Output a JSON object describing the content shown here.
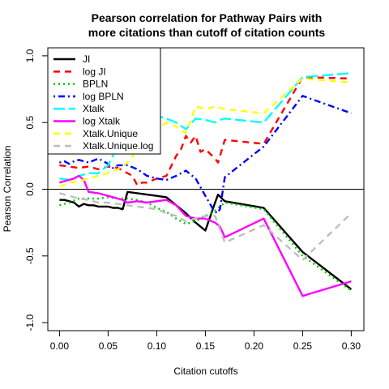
{
  "chart_data": {
    "type": "line",
    "title_lines": [
      "Pearson correlation for Pathway Pairs with",
      "more citations than cutoff of citation counts"
    ],
    "xlabel": "Citation cutoffs",
    "ylabel": "Pearson Correlation",
    "xlim": [
      -0.012,
      0.313
    ],
    "ylim": [
      -1.06,
      1.06
    ],
    "xticks": [
      0.0,
      0.05,
      0.1,
      0.15,
      0.2,
      0.25,
      0.3
    ],
    "xtick_labels": [
      "0.00",
      "0.05",
      "0.10",
      "0.15",
      "0.20",
      "0.25",
      "0.30"
    ],
    "yticks": [
      -1.0,
      -0.5,
      0.0,
      0.5,
      1.0
    ],
    "ytick_labels": [
      "-1.0",
      "-0.5",
      "0.0",
      "0.5",
      "1.0"
    ],
    "reference_line_y": 0,
    "legend_position": "top-left",
    "series": [
      {
        "name": "JI",
        "color": "#000000",
        "dash": "solid",
        "width": 2.4,
        "points": [
          [
            0.0,
            -0.08
          ],
          [
            0.005,
            -0.08
          ],
          [
            0.01,
            -0.09
          ],
          [
            0.015,
            -0.1
          ],
          [
            0.02,
            -0.13
          ],
          [
            0.025,
            -0.11
          ],
          [
            0.03,
            -0.12
          ],
          [
            0.035,
            -0.12
          ],
          [
            0.04,
            -0.13
          ],
          [
            0.05,
            -0.13
          ],
          [
            0.055,
            -0.14
          ],
          [
            0.06,
            -0.14
          ],
          [
            0.065,
            -0.15
          ],
          [
            0.07,
            -0.02
          ],
          [
            0.08,
            -0.03
          ],
          [
            0.09,
            -0.04
          ],
          [
            0.1,
            -0.05
          ],
          [
            0.11,
            -0.06
          ],
          [
            0.12,
            -0.12
          ],
          [
            0.13,
            -0.18
          ],
          [
            0.14,
            -0.25
          ],
          [
            0.15,
            -0.31
          ],
          [
            0.16,
            -0.1
          ],
          [
            0.163,
            -0.04
          ],
          [
            0.17,
            -0.09
          ],
          [
            0.21,
            -0.14
          ],
          [
            0.25,
            -0.47
          ],
          [
            0.3,
            -0.75
          ]
        ]
      },
      {
        "name": "log JI",
        "color": "#ff0000",
        "dash": "dashed",
        "width": 2.4,
        "points": [
          [
            0.0,
            0.18
          ],
          [
            0.01,
            0.17
          ],
          [
            0.02,
            0.16
          ],
          [
            0.03,
            0.17
          ],
          [
            0.04,
            0.15
          ],
          [
            0.05,
            0.17
          ],
          [
            0.06,
            0.16
          ],
          [
            0.065,
            0.14
          ],
          [
            0.07,
            0.12
          ],
          [
            0.075,
            0.1
          ],
          [
            0.08,
            0.03
          ],
          [
            0.085,
            0.05
          ],
          [
            0.09,
            0.05
          ],
          [
            0.1,
            0.08
          ],
          [
            0.11,
            0.1
          ],
          [
            0.12,
            0.25
          ],
          [
            0.125,
            0.3
          ],
          [
            0.13,
            0.4
          ],
          [
            0.135,
            0.35
          ],
          [
            0.14,
            0.4
          ],
          [
            0.145,
            0.28
          ],
          [
            0.15,
            0.3
          ],
          [
            0.16,
            0.23
          ],
          [
            0.163,
            0.2
          ],
          [
            0.17,
            0.37
          ],
          [
            0.21,
            0.34
          ],
          [
            0.25,
            0.84
          ],
          [
            0.3,
            0.83
          ]
        ]
      },
      {
        "name": "BPLN",
        "color": "#00cd00",
        "dash": "dotted",
        "width": 2.4,
        "points": [
          [
            0.0,
            -0.12
          ],
          [
            0.01,
            -0.1
          ],
          [
            0.02,
            -0.07
          ],
          [
            0.03,
            -0.07
          ],
          [
            0.04,
            -0.07
          ],
          [
            0.05,
            -0.06
          ],
          [
            0.06,
            -0.07
          ],
          [
            0.07,
            -0.07
          ],
          [
            0.08,
            -0.08
          ],
          [
            0.09,
            -0.1
          ],
          [
            0.1,
            -0.14
          ],
          [
            0.11,
            -0.17
          ],
          [
            0.12,
            -0.22
          ],
          [
            0.13,
            -0.26
          ],
          [
            0.14,
            -0.24
          ],
          [
            0.15,
            -0.2
          ],
          [
            0.16,
            -0.16
          ],
          [
            0.17,
            -0.1
          ],
          [
            0.21,
            -0.15
          ],
          [
            0.25,
            -0.5
          ],
          [
            0.3,
            -0.76
          ]
        ]
      },
      {
        "name": "log BPLN",
        "color": "#0000ff",
        "dash": "dotdash",
        "width": 2.4,
        "points": [
          [
            0.0,
            0.2
          ],
          [
            0.005,
            0.21
          ],
          [
            0.01,
            0.19
          ],
          [
            0.015,
            0.21
          ],
          [
            0.02,
            0.22
          ],
          [
            0.03,
            0.2
          ],
          [
            0.04,
            0.23
          ],
          [
            0.05,
            0.19
          ],
          [
            0.055,
            0.16
          ],
          [
            0.06,
            0.18
          ],
          [
            0.07,
            0.18
          ],
          [
            0.08,
            0.15
          ],
          [
            0.09,
            0.1
          ],
          [
            0.1,
            0.08
          ],
          [
            0.11,
            0.07
          ],
          [
            0.12,
            0.1
          ],
          [
            0.13,
            0.14
          ],
          [
            0.14,
            0.08
          ],
          [
            0.15,
            -0.05
          ],
          [
            0.158,
            -0.15
          ],
          [
            0.162,
            -0.18
          ],
          [
            0.165,
            -0.15
          ],
          [
            0.17,
            0.09
          ],
          [
            0.21,
            0.32
          ],
          [
            0.25,
            0.7
          ],
          [
            0.3,
            0.57
          ]
        ]
      },
      {
        "name": "Xtalk",
        "color": "#00ffff",
        "dash": "longdash",
        "width": 2.4,
        "points": [
          [
            0.0,
            0.08
          ],
          [
            0.01,
            0.07
          ],
          [
            0.02,
            0.1
          ],
          [
            0.03,
            0.12
          ],
          [
            0.04,
            0.12
          ],
          [
            0.05,
            0.18
          ],
          [
            0.055,
            0.25
          ],
          [
            0.06,
            0.4
          ],
          [
            0.07,
            0.45
          ],
          [
            0.09,
            0.5
          ],
          [
            0.1,
            0.55
          ],
          [
            0.11,
            0.53
          ],
          [
            0.12,
            0.5
          ],
          [
            0.13,
            0.45
          ],
          [
            0.14,
            0.53
          ],
          [
            0.15,
            0.52
          ],
          [
            0.16,
            0.5
          ],
          [
            0.165,
            0.52
          ],
          [
            0.17,
            0.53
          ],
          [
            0.21,
            0.5
          ],
          [
            0.25,
            0.84
          ],
          [
            0.3,
            0.87
          ]
        ]
      },
      {
        "name": "log Xtalk",
        "color": "#ff00ff",
        "dash": "solid",
        "width": 2.4,
        "points": [
          [
            0.0,
            0.05
          ],
          [
            0.005,
            0.06
          ],
          [
            0.01,
            0.07
          ],
          [
            0.015,
            0.08
          ],
          [
            0.02,
            0.1
          ],
          [
            0.025,
            0.07
          ],
          [
            0.03,
            -0.02
          ],
          [
            0.04,
            -0.03
          ],
          [
            0.05,
            -0.05
          ],
          [
            0.06,
            -0.07
          ],
          [
            0.065,
            -0.08
          ],
          [
            0.07,
            -0.1
          ],
          [
            0.08,
            -0.09
          ],
          [
            0.09,
            -0.1
          ],
          [
            0.1,
            -0.09
          ],
          [
            0.11,
            -0.08
          ],
          [
            0.12,
            -0.12
          ],
          [
            0.13,
            -0.2
          ],
          [
            0.14,
            -0.22
          ],
          [
            0.15,
            -0.22
          ],
          [
            0.16,
            -0.25
          ],
          [
            0.165,
            -0.28
          ],
          [
            0.17,
            -0.36
          ],
          [
            0.21,
            -0.22
          ],
          [
            0.25,
            -0.8
          ],
          [
            0.3,
            -0.69
          ]
        ]
      },
      {
        "name": "Xtalk.Unique",
        "color": "#ffff00",
        "dash": "dashed",
        "width": 2.4,
        "points": [
          [
            0.0,
            0.02
          ],
          [
            0.01,
            0.05
          ],
          [
            0.02,
            0.06
          ],
          [
            0.03,
            0.08
          ],
          [
            0.04,
            0.1
          ],
          [
            0.05,
            0.12
          ],
          [
            0.06,
            0.15
          ],
          [
            0.07,
            0.2
          ],
          [
            0.08,
            0.3
          ],
          [
            0.09,
            0.35
          ],
          [
            0.1,
            0.45
          ],
          [
            0.11,
            0.5
          ],
          [
            0.12,
            0.47
          ],
          [
            0.13,
            0.42
          ],
          [
            0.14,
            0.62
          ],
          [
            0.15,
            0.6
          ],
          [
            0.16,
            0.62
          ],
          [
            0.17,
            0.6
          ],
          [
            0.21,
            0.57
          ],
          [
            0.25,
            0.83
          ],
          [
            0.3,
            0.8
          ]
        ]
      },
      {
        "name": "Xtalk.Unique.log",
        "color": "#bebebe",
        "dash": "dashed",
        "width": 2.4,
        "points": [
          [
            0.0,
            -0.03
          ],
          [
            0.01,
            -0.05
          ],
          [
            0.02,
            -0.07
          ],
          [
            0.03,
            -0.08
          ],
          [
            0.04,
            -0.1
          ],
          [
            0.05,
            -0.1
          ],
          [
            0.06,
            -0.11
          ],
          [
            0.07,
            -0.12
          ],
          [
            0.08,
            -0.13
          ],
          [
            0.09,
            -0.14
          ],
          [
            0.1,
            -0.15
          ],
          [
            0.11,
            -0.18
          ],
          [
            0.12,
            -0.2
          ],
          [
            0.13,
            -0.24
          ],
          [
            0.14,
            -0.22
          ],
          [
            0.15,
            -0.2
          ],
          [
            0.16,
            -0.2
          ],
          [
            0.17,
            -0.4
          ],
          [
            0.21,
            -0.27
          ],
          [
            0.25,
            -0.53
          ],
          [
            0.3,
            -0.18
          ]
        ]
      }
    ]
  }
}
